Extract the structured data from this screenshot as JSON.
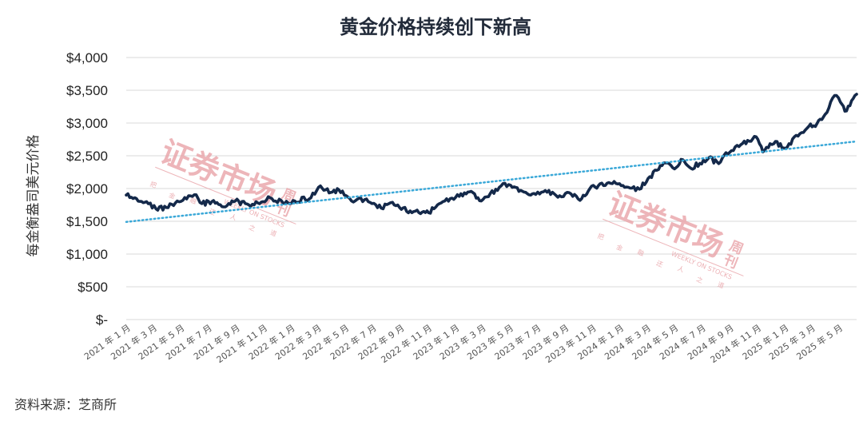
{
  "chart_data": {
    "type": "line",
    "title": "黄金价格持续创下新高",
    "ylabel": "每金衡盎司美元价格",
    "ylim": [
      0,
      4000
    ],
    "y_ticks": [
      {
        "value": 0,
        "label": "$-"
      },
      {
        "value": 500,
        "label": "$500"
      },
      {
        "value": 1000,
        "label": "$1,000"
      },
      {
        "value": 1500,
        "label": "$1,500"
      },
      {
        "value": 2000,
        "label": "$2,000"
      },
      {
        "value": 2500,
        "label": "$2,500"
      },
      {
        "value": 3000,
        "label": "$3,000"
      },
      {
        "value": 3500,
        "label": "$3,500"
      },
      {
        "value": 4000,
        "label": "$4,000"
      }
    ],
    "x_range": [
      "2021-01-01",
      "2025-06-10"
    ],
    "x_ticks": [
      {
        "date": "2021-01-01",
        "label": "2021 年 1 月"
      },
      {
        "date": "2021-03-01",
        "label": "2021 年 3 月"
      },
      {
        "date": "2021-05-01",
        "label": "2021 年 5 月"
      },
      {
        "date": "2021-07-01",
        "label": "2021 年 7 月"
      },
      {
        "date": "2021-09-01",
        "label": "2021 年 9 月"
      },
      {
        "date": "2021-11-01",
        "label": "2021 年 11 月"
      },
      {
        "date": "2022-01-01",
        "label": "2022 年 1 月"
      },
      {
        "date": "2022-03-01",
        "label": "2022 年 3 月"
      },
      {
        "date": "2022-05-01",
        "label": "2022 年 5 月"
      },
      {
        "date": "2022-07-01",
        "label": "2022 年 7 月"
      },
      {
        "date": "2022-09-01",
        "label": "2022 年 9 月"
      },
      {
        "date": "2022-11-01",
        "label": "2022 年 11 月"
      },
      {
        "date": "2023-01-01",
        "label": "2023 年 1 月"
      },
      {
        "date": "2023-03-01",
        "label": "2023 年 3 月"
      },
      {
        "date": "2023-05-01",
        "label": "2023 年 5 月"
      },
      {
        "date": "2023-07-01",
        "label": "2023 年 7 月"
      },
      {
        "date": "2023-09-01",
        "label": "2023 年 9 月"
      },
      {
        "date": "2023-11-01",
        "label": "2023 年 11 月"
      },
      {
        "date": "2024-01-01",
        "label": "2024 年 1 月"
      },
      {
        "date": "2024-03-01",
        "label": "2024 年 3 月"
      },
      {
        "date": "2024-05-01",
        "label": "2024 年 5 月"
      },
      {
        "date": "2024-07-01",
        "label": "2024 年 7 月"
      },
      {
        "date": "2024-09-01",
        "label": "2024 年 9 月"
      },
      {
        "date": "2024-11-01",
        "label": "2024 年 11 月"
      },
      {
        "date": "2025-01-01",
        "label": "2025 年 1 月"
      },
      {
        "date": "2025-03-01",
        "label": "2025 年 3 月"
      },
      {
        "date": "2025-05-01",
        "label": "2025 年 5 月"
      }
    ],
    "grid": true,
    "series": [
      {
        "color": "#14294a",
        "points": [
          [
            "2021-01-01",
            1900
          ],
          [
            "2021-01-20",
            1860
          ],
          [
            "2021-02-15",
            1800
          ],
          [
            "2021-03-08",
            1690
          ],
          [
            "2021-03-31",
            1710
          ],
          [
            "2021-04-20",
            1780
          ],
          [
            "2021-05-15",
            1840
          ],
          [
            "2021-06-01",
            1905
          ],
          [
            "2021-06-18",
            1770
          ],
          [
            "2021-07-10",
            1800
          ],
          [
            "2021-08-09",
            1720
          ],
          [
            "2021-08-31",
            1810
          ],
          [
            "2021-09-30",
            1750
          ],
          [
            "2021-10-20",
            1780
          ],
          [
            "2021-11-16",
            1860
          ],
          [
            "2021-12-15",
            1780
          ],
          [
            "2022-01-10",
            1810
          ],
          [
            "2022-02-15",
            1860
          ],
          [
            "2022-03-08",
            2040
          ],
          [
            "2022-03-31",
            1940
          ],
          [
            "2022-04-18",
            1980
          ],
          [
            "2022-05-16",
            1810
          ],
          [
            "2022-06-14",
            1830
          ],
          [
            "2022-07-21",
            1700
          ],
          [
            "2022-08-15",
            1790
          ],
          [
            "2022-09-27",
            1630
          ],
          [
            "2022-10-20",
            1640
          ],
          [
            "2022-11-03",
            1630
          ],
          [
            "2022-12-01",
            1780
          ],
          [
            "2023-01-10",
            1880
          ],
          [
            "2023-02-02",
            1950
          ],
          [
            "2023-02-28",
            1810
          ],
          [
            "2023-04-13",
            2040
          ],
          [
            "2023-05-04",
            2050
          ],
          [
            "2023-05-30",
            1960
          ],
          [
            "2023-06-29",
            1910
          ],
          [
            "2023-07-20",
            1970
          ],
          [
            "2023-08-21",
            1890
          ],
          [
            "2023-09-15",
            1920
          ],
          [
            "2023-10-05",
            1820
          ],
          [
            "2023-10-27",
            2000
          ],
          [
            "2023-12-04",
            2080
          ],
          [
            "2023-12-28",
            2070
          ],
          [
            "2024-01-20",
            2020
          ],
          [
            "2024-02-14",
            1990
          ],
          [
            "2024-03-08",
            2180
          ],
          [
            "2024-04-12",
            2390
          ],
          [
            "2024-05-02",
            2300
          ],
          [
            "2024-05-20",
            2440
          ],
          [
            "2024-06-07",
            2310
          ],
          [
            "2024-07-17",
            2470
          ],
          [
            "2024-08-08",
            2380
          ],
          [
            "2024-08-20",
            2510
          ],
          [
            "2024-09-26",
            2670
          ],
          [
            "2024-10-30",
            2790
          ],
          [
            "2024-11-14",
            2560
          ],
          [
            "2024-12-12",
            2720
          ],
          [
            "2024-12-30",
            2620
          ],
          [
            "2025-01-31",
            2800
          ],
          [
            "2025-02-24",
            2950
          ],
          [
            "2025-03-14",
            2990
          ],
          [
            "2025-04-01",
            3130
          ],
          [
            "2025-04-22",
            3420
          ],
          [
            "2025-05-05",
            3320
          ],
          [
            "2025-05-15",
            3180
          ],
          [
            "2025-06-10",
            3440
          ]
        ]
      },
      {
        "color": "#3aa8d8",
        "style": "dotted",
        "points": [
          [
            "2021-01-01",
            1490
          ],
          [
            "2025-06-10",
            2720
          ]
        ]
      }
    ]
  },
  "source_note": "资料来源：芝商所",
  "watermarks": [
    {
      "main": "证券市场",
      "side": "周刊",
      "sub": "WEEKLY ON STOCKS",
      "motto": [
        "把",
        "金",
        "融",
        "还",
        "人",
        "之",
        "道"
      ]
    },
    {
      "main": "证券市场",
      "side": "周刊",
      "sub": "WEEKLY ON STOCKS",
      "motto": [
        "把",
        "金",
        "融",
        "还",
        "人",
        "之",
        "道"
      ]
    }
  ]
}
